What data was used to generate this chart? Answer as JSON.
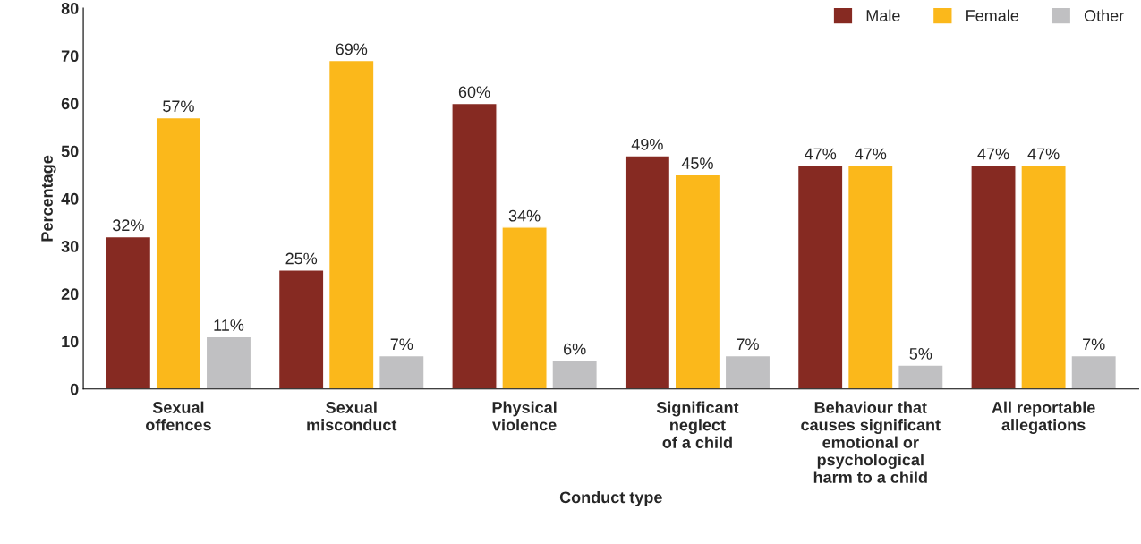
{
  "chart_data": {
    "type": "bar",
    "xlabel": "Conduct type",
    "ylabel": "Percentage",
    "categories": [
      "Sexual\noffences",
      "Sexual\nmisconduct",
      "Physical\nviolence",
      "Significant\nneglect\nof a child",
      "Behaviour that\ncauses significant\nemotional or\npsychological\nharm to a child",
      "All reportable\nallegations"
    ],
    "series": [
      {
        "name": "Male",
        "color": "#862a22",
        "values": [
          32,
          25,
          60,
          49,
          47,
          47
        ],
        "value_labels": [
          "32%",
          "25%",
          "60%",
          "49%",
          "47%",
          "47%"
        ]
      },
      {
        "name": "Female",
        "color": "#fbb81b",
        "values": [
          57,
          69,
          34,
          45,
          47,
          47
        ],
        "value_labels": [
          "57%",
          "69%",
          "34%",
          "45%",
          "47%",
          "47%"
        ]
      },
      {
        "name": "Other",
        "color": "#c0c0c2",
        "values": [
          11,
          7,
          6,
          7,
          5,
          7
        ],
        "value_labels": [
          "11%",
          "7%",
          "6%",
          "7%",
          "5%",
          "7%"
        ]
      }
    ],
    "ylim": [
      0,
      80
    ],
    "yticks": [
      0,
      10,
      20,
      30,
      40,
      50,
      60,
      70,
      80
    ],
    "legend": "top right",
    "grid": false
  }
}
